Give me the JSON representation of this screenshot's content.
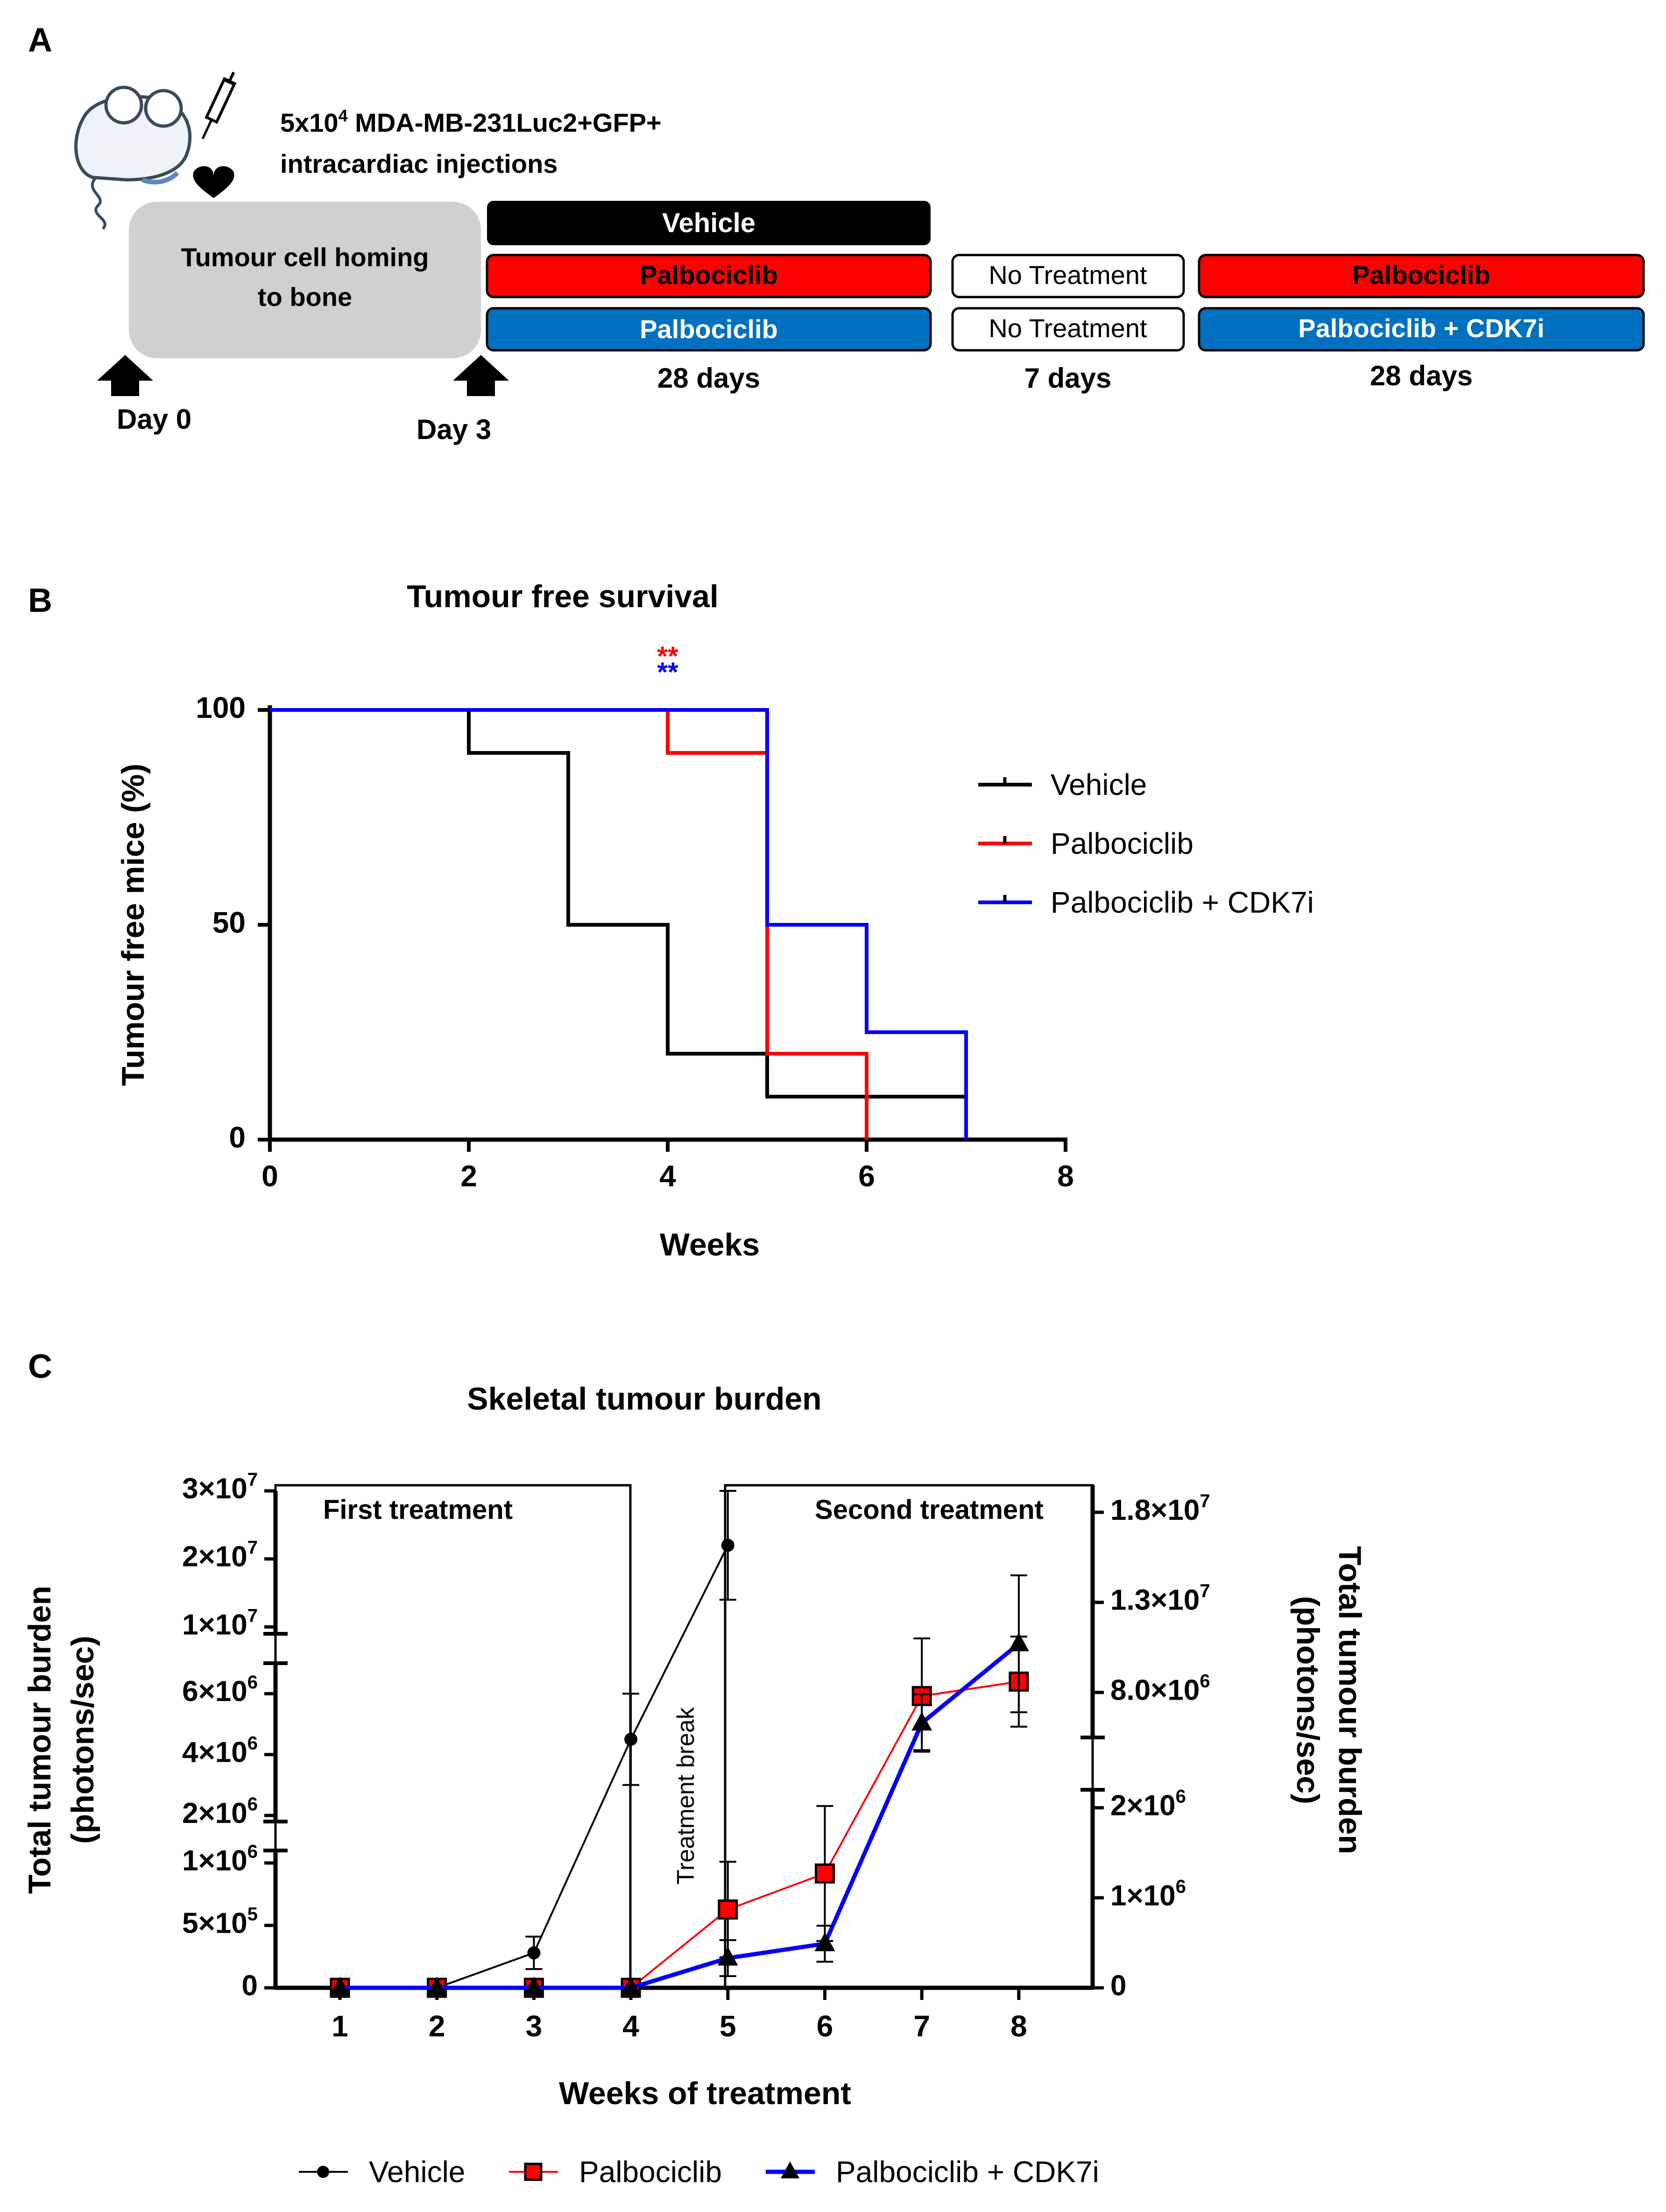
{
  "panels": {
    "a_label": "A",
    "b_label": "B",
    "c_label": "C"
  },
  "panel_a": {
    "injection_line1_prefix": "5x10",
    "injection_line1_sup": "4",
    "injection_line1_suffix": " MDA-MB-231Luc2+GFP+",
    "injection_line2": "intracardiac injections",
    "homing_line1": "Tumour cell homing",
    "homing_line2": "to bone",
    "day0": "Day 0",
    "day3": "Day 3",
    "bars": {
      "vehicle": "Vehicle",
      "palbo_red_first": "Palbociclib",
      "palbo_blue_first": "Palbociclib",
      "no_treat_1": "No Treatment",
      "no_treat_2": "No Treatment",
      "palbo_red_second": "Palbociclib",
      "combo_second": "Palbociclib + CDK7i"
    },
    "dur_first": "28 days",
    "dur_break": "7 days",
    "dur_second": "28 days",
    "colors": {
      "black": "#000000",
      "red": "#ff0000",
      "blue": "#0070c0",
      "grey": "#d0d0d0"
    }
  },
  "chart_data": [
    {
      "type": "line",
      "subtype": "kaplan-meier",
      "title": "Tumour free survival",
      "xlabel": "Weeks",
      "ylabel": "Tumour free mice (%)",
      "xlim": [
        0,
        8
      ],
      "ylim": [
        0,
        100
      ],
      "xticks": [
        "0",
        "2",
        "4",
        "6",
        "8"
      ],
      "yticks": [
        "0",
        "50",
        "100"
      ],
      "significance": {
        "x": 4,
        "marks": [
          {
            "text": "**",
            "color": "#ff0000"
          },
          {
            "text": "**",
            "color": "#0000ff"
          }
        ]
      },
      "legend_position": "right",
      "series": [
        {
          "name": "Vehicle",
          "color": "#000000",
          "steps": [
            [
              0,
              100
            ],
            [
              2,
              90
            ],
            [
              3,
              50
            ],
            [
              4,
              20
            ],
            [
              5,
              10
            ],
            [
              7,
              0
            ]
          ]
        },
        {
          "name": "Palbociclib",
          "color": "#ff0000",
          "steps": [
            [
              0,
              100
            ],
            [
              4,
              90
            ],
            [
              5,
              20
            ],
            [
              6,
              0
            ]
          ]
        },
        {
          "name": "Palbociclib + CDK7i",
          "color": "#0000ff",
          "steps": [
            [
              0,
              100
            ],
            [
              5,
              50
            ],
            [
              6,
              25
            ],
            [
              7,
              0
            ]
          ]
        }
      ]
    },
    {
      "type": "line",
      "title": "Skeletal tumour burden",
      "xlabel": "Weeks of treatment",
      "ylabel_left_line1": "Total tumour burden",
      "ylabel_left_line2": "(photons/sec)",
      "ylabel_right_line1": "Total tumour burden",
      "ylabel_right_line2": "(photons/sec)",
      "x": [
        1,
        2,
        3,
        4,
        5,
        6,
        7,
        8
      ],
      "xticks": [
        "1",
        "2",
        "3",
        "4",
        "5",
        "6",
        "7",
        "8"
      ],
      "left_axis": {
        "scale": "broken",
        "segments": [
          {
            "range": [
              0,
              1100000
            ],
            "ticks": [
              {
                "v": 0,
                "label": "0"
              },
              {
                "v": 500000,
                "label": "5×10",
                "exp": "5"
              },
              {
                "v": 1000000,
                "label": "1×10",
                "exp": "6"
              }
            ]
          },
          {
            "range": [
              1800000,
              7000000
            ],
            "ticks": [
              {
                "v": 2000000,
                "label": "2×10",
                "exp": "6"
              },
              {
                "v": 4000000,
                "label": "4×10",
                "exp": "6"
              },
              {
                "v": 6000000,
                "label": "6×10",
                "exp": "6"
              }
            ]
          },
          {
            "range": [
              9000000,
              30000000
            ],
            "ticks": [
              {
                "v": 10000000,
                "label": "1×10",
                "exp": "7"
              },
              {
                "v": 20000000,
                "label": "2×10",
                "exp": "7"
              },
              {
                "v": 30000000,
                "label": "3×10",
                "exp": "7"
              }
            ]
          }
        ]
      },
      "right_axis": {
        "scale": "broken",
        "segments": [
          {
            "range": [
              0,
              2200000
            ],
            "ticks": [
              {
                "v": 0,
                "label": "0"
              },
              {
                "v": 1000000,
                "label": "1×10",
                "exp": "6"
              },
              {
                "v": 2000000,
                "label": "2×10",
                "exp": "6"
              }
            ]
          },
          {
            "range": [
              5500000,
              19500000
            ],
            "ticks": [
              {
                "v": 8000000,
                "label": "8.0×10",
                "exp": "6"
              },
              {
                "v": 13000000,
                "label": "1.3×10",
                "exp": "7"
              },
              {
                "v": 18000000,
                "label": "1.8×10",
                "exp": "7"
              }
            ]
          }
        ]
      },
      "annotations": {
        "first_treatment": "First treatment",
        "second_treatment": "Second treatment",
        "treatment_break": "Treatment break"
      },
      "legend_position": "bottom",
      "series": [
        {
          "name": "Vehicle",
          "axis": "left",
          "color": "#000000",
          "marker": "circle",
          "values": [
            0,
            0,
            280000,
            4500000,
            22000000,
            null,
            null,
            null
          ],
          "errors": [
            0,
            0,
            130000,
            1500000,
            8000000,
            null,
            null,
            null
          ]
        },
        {
          "name": "Palbociclib",
          "axis": "right",
          "color": "#ff0000",
          "marker": "square",
          "values": [
            0,
            0,
            0,
            0,
            870000,
            1270000,
            7800000,
            8600000
          ],
          "errors": [
            0,
            0,
            0,
            0,
            530000,
            750000,
            3200000,
            2500000
          ]
        },
        {
          "name": "Palbociclib + CDK7i",
          "axis": "right",
          "color": "#0000ff",
          "marker": "triangle",
          "values": [
            0,
            0,
            0,
            0,
            330000,
            490000,
            6300000,
            10700000
          ],
          "errors": [
            0,
            0,
            0,
            0,
            200000,
            200000,
            1600000,
            3800000
          ]
        }
      ]
    }
  ]
}
